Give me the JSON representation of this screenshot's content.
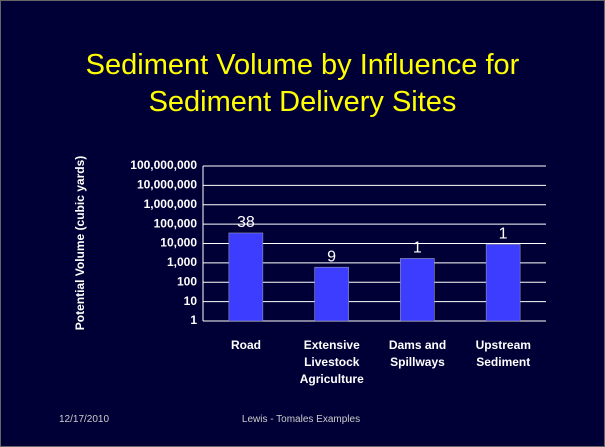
{
  "chart_data": {
    "type": "bar",
    "title": "Sediment Volume by Influence for Sediment Delivery Sites",
    "y_label": "Potential Volume (cubic yards)",
    "categories": [
      "Road",
      "Extensive\nLivestock\nAgriculture",
      "Dams and\nSpillways",
      "Upstream\nSediment"
    ],
    "values": [
      35000,
      600,
      1700,
      9000
    ],
    "bar_labels": [
      38,
      9,
      1,
      1
    ],
    "color": "#3d3dff",
    "ylim": [
      1,
      100000000
    ],
    "log_scale": true,
    "yticks": [
      1,
      10,
      100,
      {
        "value": 1000,
        "label": "1,000"
      },
      {
        "value": 10000,
        "label": "10,000"
      },
      {
        "value": 100000,
        "label": "100,000"
      },
      {
        "value": 1000000,
        "label": "1,000,000"
      },
      {
        "value": 10000000,
        "label": "10,000,000"
      },
      {
        "value": 100000000,
        "label": "100,000,000"
      }
    ],
    "grid": true
  },
  "footer": {
    "date": "12/17/2010",
    "text": "Lewis - Tomales Examples"
  }
}
